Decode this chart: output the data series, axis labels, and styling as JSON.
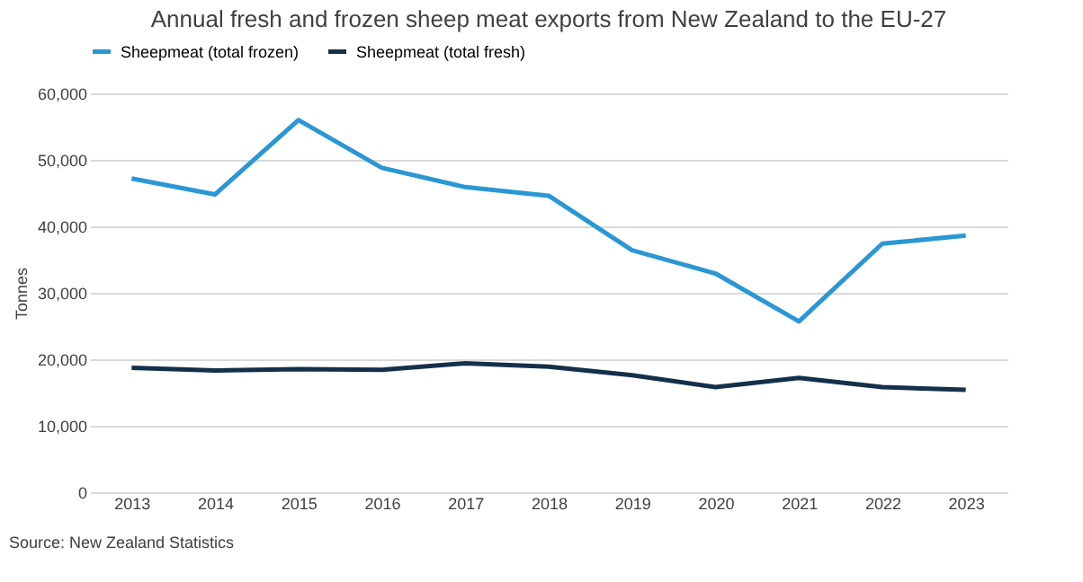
{
  "chart_data": {
    "type": "line",
    "title": "Annual fresh and frozen sheep meat exports from New Zealand to the EU-27",
    "ylabel": "Tonnes",
    "categories": [
      "2013",
      "2014",
      "2015",
      "2016",
      "2017",
      "2018",
      "2019",
      "2020",
      "2021",
      "2022",
      "2023"
    ],
    "series": [
      {
        "name": "Sheepmeat (total frozen)",
        "color": "#2a97d4",
        "values": [
          47200,
          44800,
          56000,
          48800,
          45900,
          44600,
          36400,
          32900,
          25700,
          37400,
          38600
        ]
      },
      {
        "name": "Sheepmeat (total fresh)",
        "color": "#14304a",
        "values": [
          18700,
          18300,
          18500,
          18400,
          19400,
          18900,
          17600,
          15800,
          17200,
          15800,
          15400
        ]
      }
    ],
    "ylim": [
      0,
      60000
    ],
    "yticks": [
      0,
      {
        "value": 10000,
        "label": "10,000"
      },
      {
        "value": 20000,
        "label": "20,000"
      },
      {
        "value": 30000,
        "label": "30,000"
      },
      {
        "value": 40000,
        "label": "40,000"
      },
      {
        "value": 50000,
        "label": "50,000"
      },
      {
        "value": 60000,
        "label": "60,000"
      }
    ],
    "grid": "y",
    "legend": "top",
    "marker": "none",
    "line_style": "solid",
    "annotations": [
      "Source: New Zealand Statistics"
    ]
  }
}
